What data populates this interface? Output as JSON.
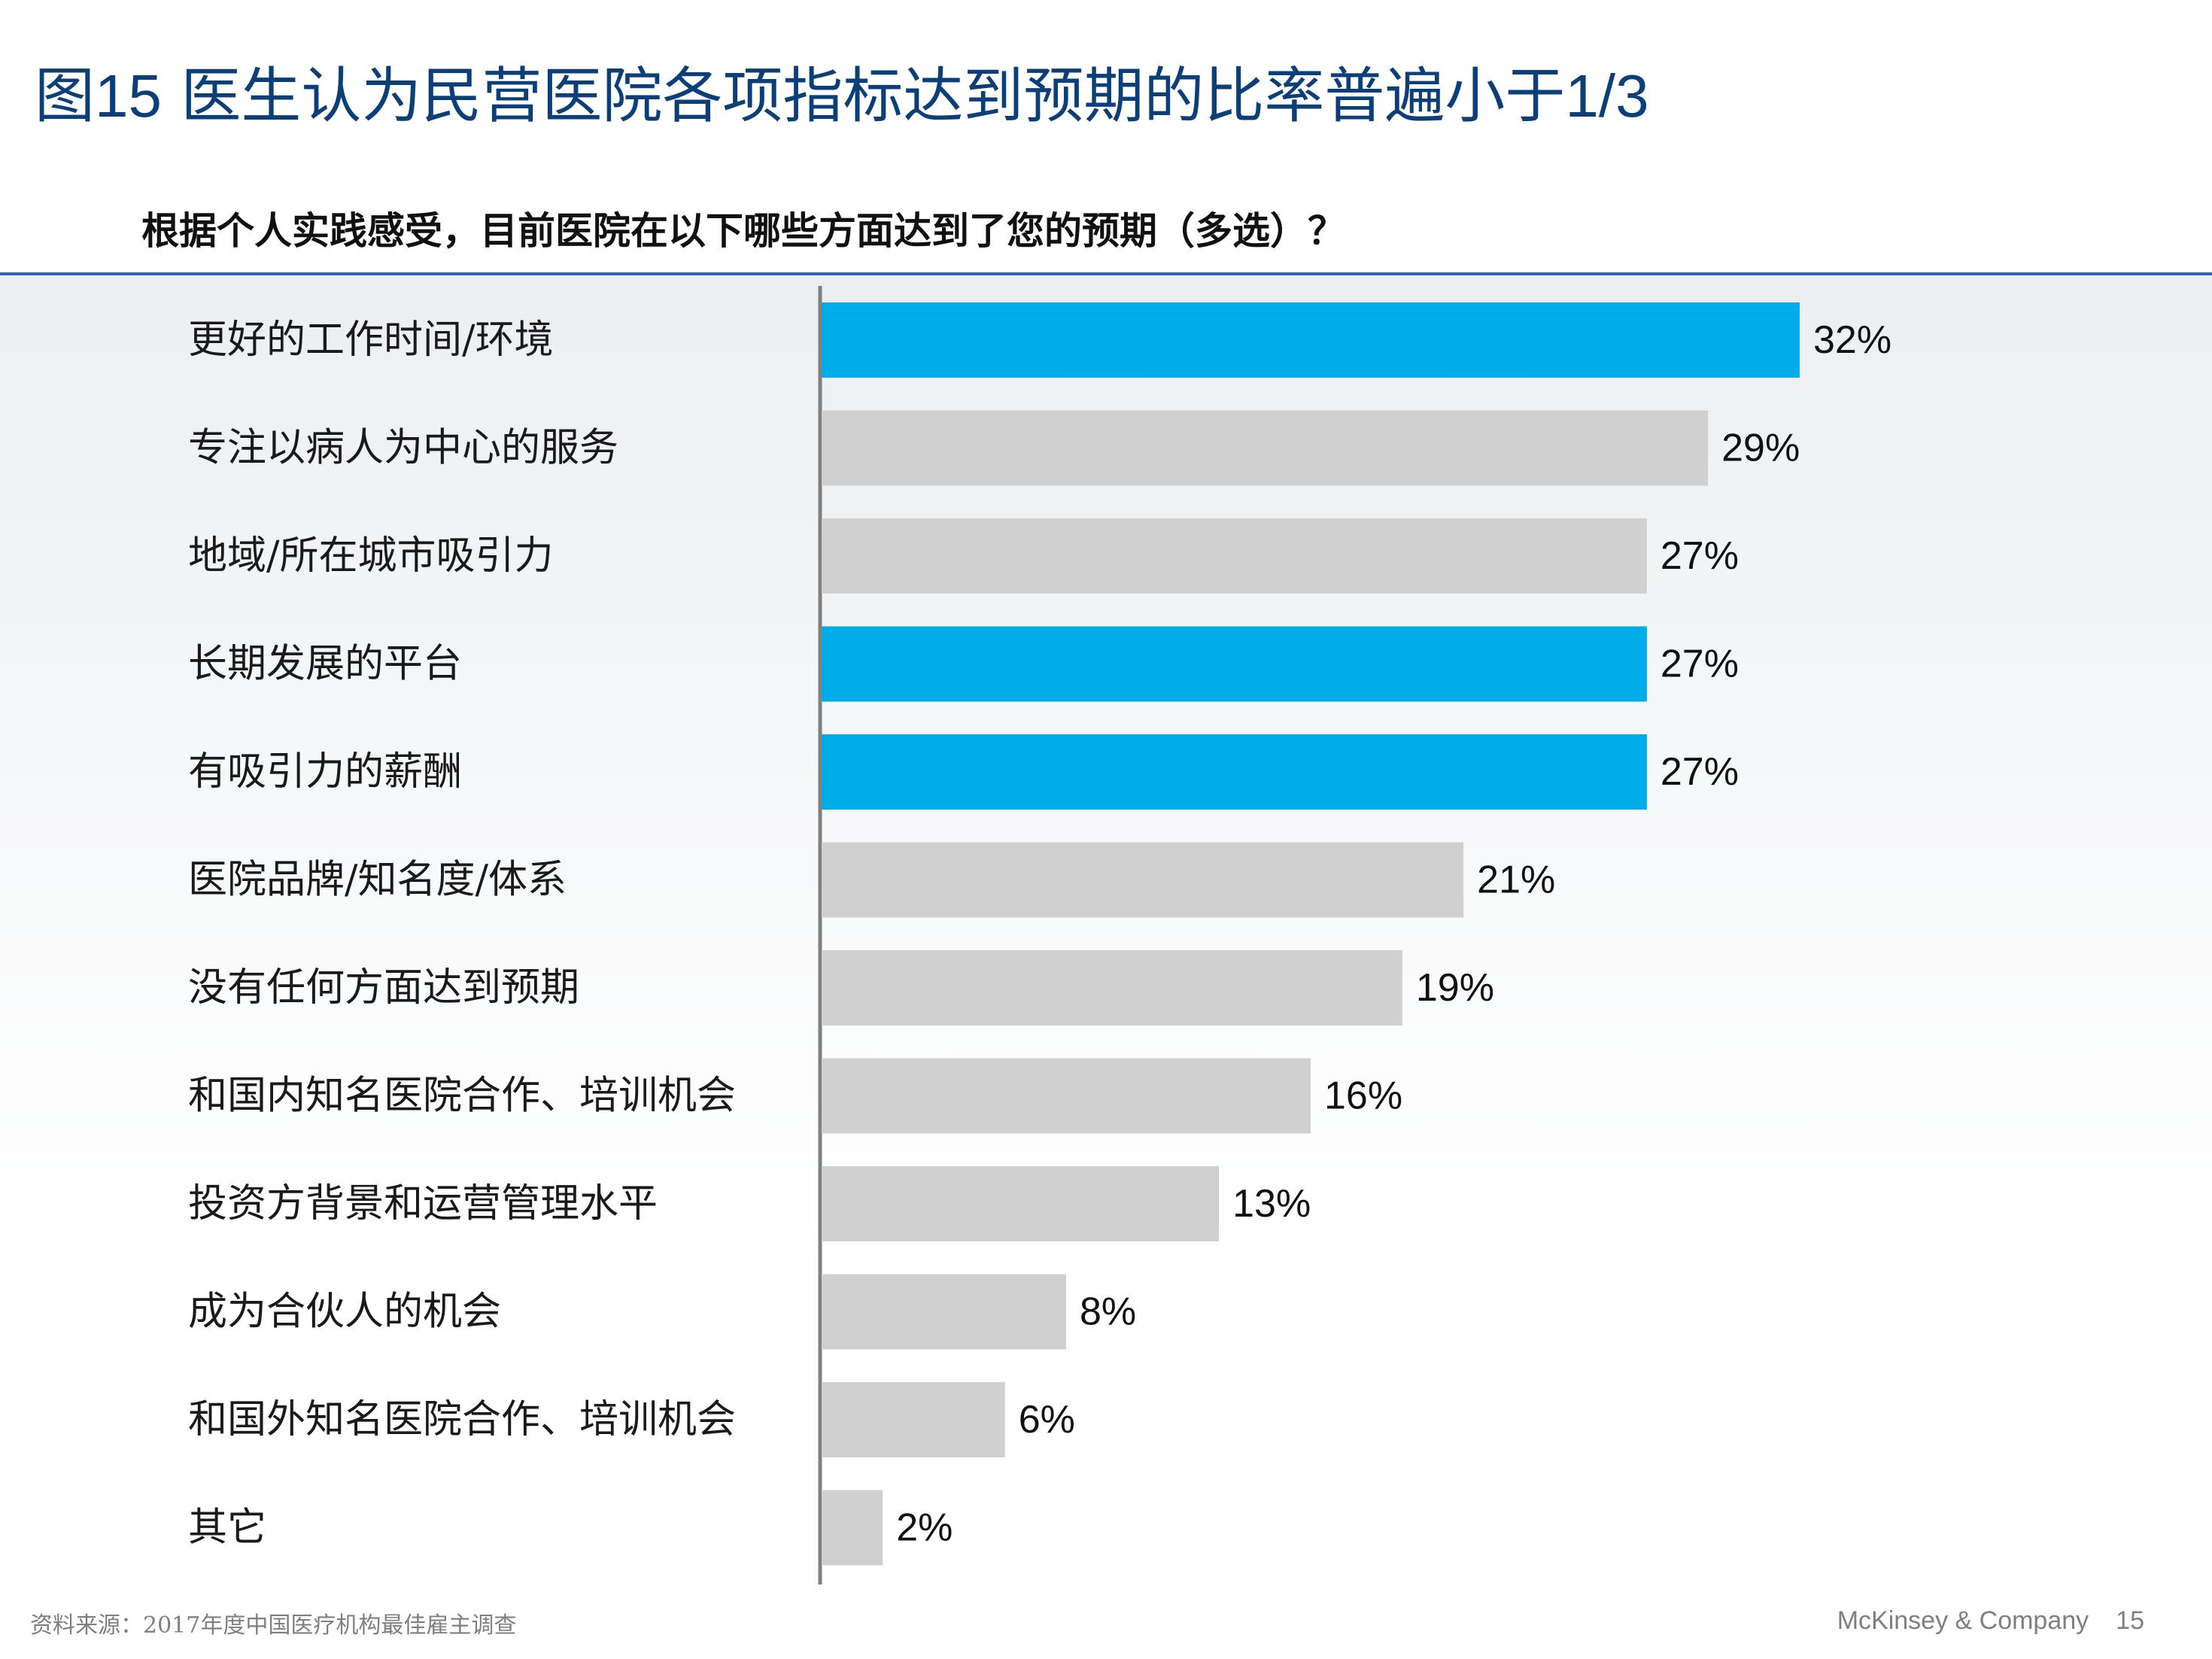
{
  "title": {
    "prefix": "图",
    "number": "15",
    "text": " 医生认为民营医院各项指标达到预期的比率普遍小于",
    "fraction": "1/3"
  },
  "question": "根据个人实践感受，目前医院在以下哪些方面达到了您的预期（多选）？",
  "colors": {
    "highlight": "#00ade9",
    "default": "#d0d0d0",
    "axis": "#808080",
    "rule": "#2a66b3"
  },
  "chart_data": {
    "type": "bar",
    "orientation": "horizontal",
    "xlim": [
      0,
      32
    ],
    "categories": [
      "更好的工作时间/环境",
      "专注以病人为中心的服务",
      "地域/所在城市吸引力",
      "长期发展的平台",
      "有吸引力的薪酬",
      "医院品牌/知名度/体系",
      "没有任何方面达到预期",
      "和国内知名医院合作、培训机会",
      "投资方背景和运营管理水平",
      "成为合伙人的机会",
      "和国外知名医院合作、培训机会",
      "其它"
    ],
    "values": [
      32,
      29,
      27,
      27,
      27,
      21,
      19,
      16,
      13,
      8,
      6,
      2
    ],
    "value_labels": [
      "32%",
      "29%",
      "27%",
      "27%",
      "27%",
      "21%",
      "19%",
      "16%",
      "13%",
      "8%",
      "6%",
      "2%"
    ],
    "highlighted": [
      true,
      false,
      false,
      true,
      true,
      false,
      false,
      false,
      false,
      false,
      false,
      false
    ]
  },
  "footer": {
    "source": "资料来源：2017年度中国医疗机构最佳雇主调查",
    "brand": "McKinsey & Company",
    "page": "15"
  }
}
